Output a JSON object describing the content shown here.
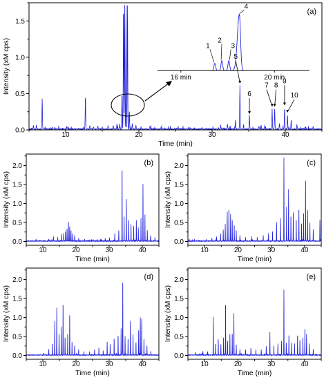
{
  "colors": {
    "trace": "#2222dd",
    "axis": "#000000"
  },
  "chart_data": [
    {
      "panel": "(a)",
      "type": "line",
      "xlabel": "Time (min)",
      "ylabel": "Intensity (xM cps)",
      "xlim": [
        5,
        45
      ],
      "ylim": [
        0,
        1.75
      ],
      "xticks": [
        10,
        20,
        30,
        40
      ],
      "yticks": [
        0.0,
        0.5,
        1.0,
        1.5
      ],
      "series": [
        {
          "peaks": [
            [
              5.6,
              0.05
            ],
            [
              6.0,
              0.06
            ],
            [
              6.8,
              0.42
            ],
            [
              7.2,
              0.03
            ],
            [
              8.5,
              0.02
            ],
            [
              10.2,
              0.03
            ],
            [
              12.7,
              0.46
            ],
            [
              13.3,
              0.05
            ],
            [
              13.8,
              0.03
            ],
            [
              14.4,
              0.04
            ],
            [
              15.0,
              0.03
            ],
            [
              15.8,
              0.05
            ],
            [
              16.5,
              0.05
            ],
            [
              17.0,
              0.06
            ],
            [
              17.4,
              0.07
            ],
            [
              17.7,
              0.5
            ],
            [
              17.9,
              1.75
            ],
            [
              18.05,
              1.75
            ],
            [
              18.25,
              1.75
            ],
            [
              18.45,
              1.75
            ],
            [
              18.7,
              0.25
            ],
            [
              19.1,
              0.08
            ],
            [
              19.6,
              0.05
            ],
            [
              20.3,
              0.03
            ],
            [
              21.5,
              0.02
            ],
            [
              23.0,
              0.02
            ],
            [
              25.2,
              0.02
            ],
            [
              27.0,
              0.02
            ],
            [
              28.6,
              0.02
            ],
            [
              31.2,
              0.03
            ],
            [
              32.1,
              0.07
            ],
            [
              33.2,
              0.12
            ],
            [
              33.8,
              0.6
            ],
            [
              34.3,
              0.06
            ],
            [
              35.1,
              0.18
            ],
            [
              36.4,
              0.04
            ],
            [
              37.2,
              0.05
            ],
            [
              38.2,
              0.28
            ],
            [
              38.55,
              0.28
            ],
            [
              39.2,
              0.08
            ],
            [
              39.9,
              0.3
            ],
            [
              40.3,
              0.2
            ],
            [
              40.8,
              0.12
            ],
            [
              41.6,
              0.05
            ],
            [
              42.8,
              0.03
            ],
            [
              43.8,
              0.03
            ]
          ]
        }
      ],
      "peak_labels": [
        {
          "label": "5",
          "x": 33.8
        },
        {
          "label": "6",
          "x": 35.1
        },
        {
          "label": "7",
          "x": 38.2
        },
        {
          "label": "8",
          "x": 38.55
        },
        {
          "label": "9",
          "x": 39.9
        },
        {
          "label": "10",
          "x": 40.3
        }
      ],
      "inset": {
        "xlim": [
          15,
          21.5
        ],
        "tick_labels": [
          {
            "x": 16,
            "label": "16 min"
          },
          {
            "x": 20,
            "label": "20 min"
          }
        ],
        "peaks": [
          [
            17.45,
            0.22
          ],
          [
            17.75,
            0.3
          ],
          [
            18.05,
            0.3
          ],
          [
            18.5,
            1.7
          ]
        ],
        "peak_labels": [
          {
            "label": "1",
            "x": 17.45
          },
          {
            "label": "2",
            "x": 17.75
          },
          {
            "label": "3",
            "x": 18.05
          },
          {
            "label": "4",
            "x": 18.5
          }
        ]
      }
    },
    {
      "panel": "(b)",
      "type": "line",
      "xlabel": "Time (min)",
      "ylabel": "Intensity (xM cps)",
      "xlim": [
        5,
        45
      ],
      "ylim": [
        -0.1,
        2.3
      ],
      "xticks": [
        10,
        20,
        30,
        40
      ],
      "yticks": [
        0.0,
        0.5,
        1.0,
        1.5,
        2.0
      ],
      "series": [
        {
          "peaks": [
            [
              11.8,
              0.05
            ],
            [
              13.2,
              0.12
            ],
            [
              14.5,
              0.1
            ],
            [
              15.6,
              0.18
            ],
            [
              16.3,
              0.22
            ],
            [
              16.8,
              0.25
            ],
            [
              17.3,
              0.35
            ],
            [
              17.7,
              0.55
            ],
            [
              18.1,
              0.42
            ],
            [
              18.5,
              0.3
            ],
            [
              19.0,
              0.2
            ],
            [
              19.6,
              0.15
            ],
            [
              20.8,
              0.08
            ],
            [
              22.6,
              0.05
            ],
            [
              25.0,
              0.04
            ],
            [
              27.5,
              0.05
            ],
            [
              28.8,
              0.06
            ],
            [
              30.1,
              0.08
            ],
            [
              31.7,
              0.2
            ],
            [
              32.9,
              0.3
            ],
            [
              33.9,
              2.05
            ],
            [
              34.5,
              0.7
            ],
            [
              35.2,
              1.1
            ],
            [
              35.9,
              0.6
            ],
            [
              36.6,
              0.45
            ],
            [
              37.4,
              0.4
            ],
            [
              38.2,
              0.55
            ],
            [
              38.8,
              0.35
            ],
            [
              39.6,
              0.6
            ],
            [
              40.2,
              1.5
            ],
            [
              40.8,
              0.7
            ],
            [
              41.5,
              0.3
            ],
            [
              42.5,
              0.15
            ],
            [
              43.8,
              0.1
            ]
          ]
        }
      ]
    },
    {
      "panel": "(c)",
      "type": "line",
      "xlabel": "Time (min)",
      "ylabel": "Intensity (xM cps)",
      "xlim": [
        5,
        45
      ],
      "ylim": [
        -0.1,
        2.3
      ],
      "xticks": [
        10,
        20,
        30,
        40
      ],
      "yticks": [
        0.0,
        0.5,
        1.0,
        1.5,
        2.0
      ],
      "series": [
        {
          "peaks": [
            [
              10.5,
              0.05
            ],
            [
              12.2,
              0.08
            ],
            [
              13.6,
              0.12
            ],
            [
              14.8,
              0.2
            ],
            [
              15.6,
              0.3
            ],
            [
              16.2,
              0.45
            ],
            [
              16.8,
              0.75
            ],
            [
              17.3,
              0.9
            ],
            [
              17.8,
              0.7
            ],
            [
              18.3,
              0.6
            ],
            [
              18.9,
              0.45
            ],
            [
              19.5,
              0.3
            ],
            [
              20.6,
              0.15
            ],
            [
              22.3,
              0.1
            ],
            [
              24.1,
              0.12
            ],
            [
              25.8,
              0.1
            ],
            [
              27.6,
              0.15
            ],
            [
              29.2,
              0.2
            ],
            [
              30.4,
              0.25
            ],
            [
              31.6,
              0.5
            ],
            [
              32.8,
              0.6
            ],
            [
              33.8,
              2.2
            ],
            [
              34.6,
              0.9
            ],
            [
              35.2,
              1.35
            ],
            [
              35.9,
              0.7
            ],
            [
              36.6,
              0.75
            ],
            [
              37.5,
              0.6
            ],
            [
              38.3,
              0.9
            ],
            [
              39.1,
              0.5
            ],
            [
              39.7,
              0.8
            ],
            [
              40.3,
              1.75
            ],
            [
              40.9,
              0.9
            ],
            [
              41.6,
              0.45
            ],
            [
              42.6,
              0.3
            ],
            [
              44.6,
              0.55
            ]
          ]
        }
      ]
    },
    {
      "panel": "(d)",
      "type": "line",
      "xlabel": "Time (min)",
      "ylabel": "Intensity (xM cps)",
      "xlim": [
        5,
        45
      ],
      "ylim": [
        -0.1,
        2.3
      ],
      "xticks": [
        10,
        20,
        30,
        40
      ],
      "yticks": [
        0.0,
        0.5,
        1.0,
        1.5,
        2.0
      ],
      "series": [
        {
          "peaks": [
            [
              10.2,
              0.05
            ],
            [
              11.8,
              0.15
            ],
            [
              12.9,
              0.3
            ],
            [
              13.6,
              0.9
            ],
            [
              14.2,
              1.25
            ],
            [
              14.9,
              0.6
            ],
            [
              15.6,
              0.75
            ],
            [
              16.1,
              1.45
            ],
            [
              16.7,
              0.5
            ],
            [
              17.5,
              0.6
            ],
            [
              18.1,
              1.15
            ],
            [
              18.8,
              0.35
            ],
            [
              19.6,
              0.25
            ],
            [
              20.8,
              0.15
            ],
            [
              22.4,
              0.1
            ],
            [
              24.1,
              0.1
            ],
            [
              25.6,
              0.15
            ],
            [
              26.9,
              0.2
            ],
            [
              28.2,
              0.12
            ],
            [
              29.4,
              0.35
            ],
            [
              30.3,
              0.3
            ],
            [
              31.5,
              0.45
            ],
            [
              32.7,
              0.55
            ],
            [
              33.6,
              0.7
            ],
            [
              34.1,
              2.1
            ],
            [
              34.8,
              0.5
            ],
            [
              35.7,
              0.45
            ],
            [
              36.4,
              0.9
            ],
            [
              37.2,
              0.55
            ],
            [
              38.1,
              0.35
            ],
            [
              38.9,
              0.7
            ],
            [
              39.4,
              1.0
            ],
            [
              39.8,
              0.95
            ],
            [
              40.5,
              0.45
            ],
            [
              41.4,
              0.25
            ],
            [
              42.6,
              0.1
            ]
          ]
        }
      ]
    },
    {
      "panel": "(e)",
      "type": "line",
      "xlabel": "Time (min)",
      "ylabel": "Intensity (xM cps)",
      "xlim": [
        5,
        45
      ],
      "ylim": [
        -0.1,
        2.3
      ],
      "xticks": [
        10,
        20,
        30,
        40
      ],
      "yticks": [
        0.0,
        0.5,
        1.0,
        1.5,
        2.0
      ],
      "series": [
        {
          "peaks": [
            [
              7.3,
              0.08
            ],
            [
              9.5,
              0.1
            ],
            [
              10.9,
              0.1
            ],
            [
              12.6,
              1.0
            ],
            [
              13.3,
              0.3
            ],
            [
              14.1,
              0.45
            ],
            [
              14.9,
              0.3
            ],
            [
              15.7,
              0.5
            ],
            [
              16.3,
              1.45
            ],
            [
              16.9,
              0.4
            ],
            [
              17.6,
              0.55
            ],
            [
              18.3,
              0.6
            ],
            [
              18.8,
              1.1
            ],
            [
              19.5,
              0.3
            ],
            [
              20.6,
              0.15
            ],
            [
              22.3,
              0.15
            ],
            [
              23.9,
              0.2
            ],
            [
              25.4,
              0.15
            ],
            [
              27.0,
              0.15
            ],
            [
              28.5,
              0.25
            ],
            [
              29.6,
              0.6
            ],
            [
              30.8,
              0.25
            ],
            [
              32.0,
              0.3
            ],
            [
              33.1,
              0.4
            ],
            [
              33.8,
              1.72
            ],
            [
              34.5,
              0.35
            ],
            [
              35.3,
              0.55
            ],
            [
              36.1,
              0.35
            ],
            [
              37.0,
              0.3
            ],
            [
              37.9,
              0.55
            ],
            [
              38.6,
              0.4
            ],
            [
              39.5,
              0.5
            ],
            [
              40.1,
              0.75
            ],
            [
              40.6,
              0.55
            ],
            [
              41.4,
              0.3
            ],
            [
              42.6,
              0.15
            ]
          ]
        }
      ]
    }
  ]
}
